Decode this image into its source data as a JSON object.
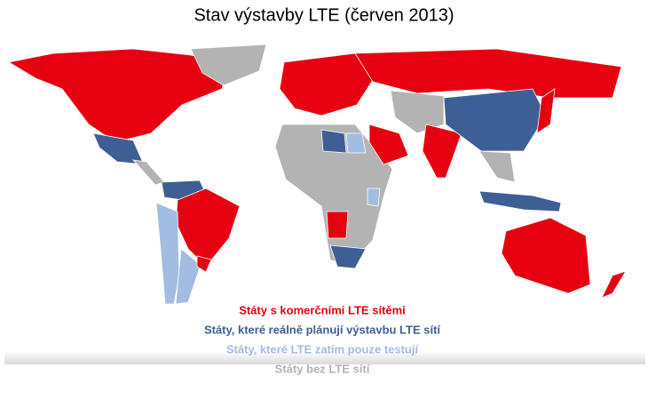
{
  "title": "Stav výstavby LTE (červen 2013)",
  "legend": [
    {
      "label": "Státy s komerčními LTE sítěmi",
      "color": "#e60010"
    },
    {
      "label": "Státy, které reálně plánují výstavbu LTE sítí",
      "color": "#3e5f95"
    },
    {
      "label": "Státy, které LTE zatím pouze testují",
      "color": "#a2bde0"
    },
    {
      "label": "Státy bez LTE sítí",
      "color": "#b3b3b3"
    }
  ]
}
